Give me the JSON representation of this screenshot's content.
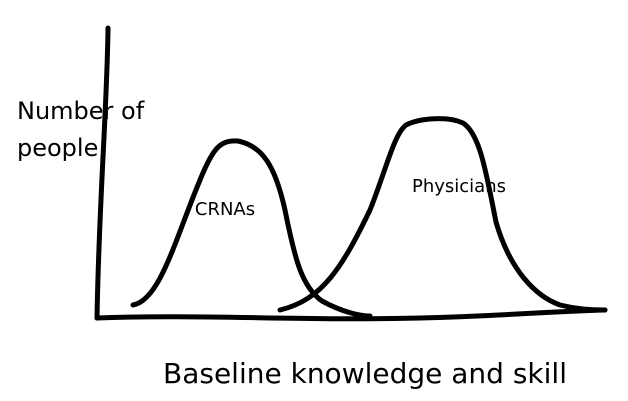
{
  "axes": {
    "y_label_lines": [
      "Number of",
      "people"
    ],
    "x_label": "Baseline knowledge and skill"
  },
  "curves": [
    {
      "label": "CRNAs"
    },
    {
      "label": "Physicians"
    }
  ]
}
